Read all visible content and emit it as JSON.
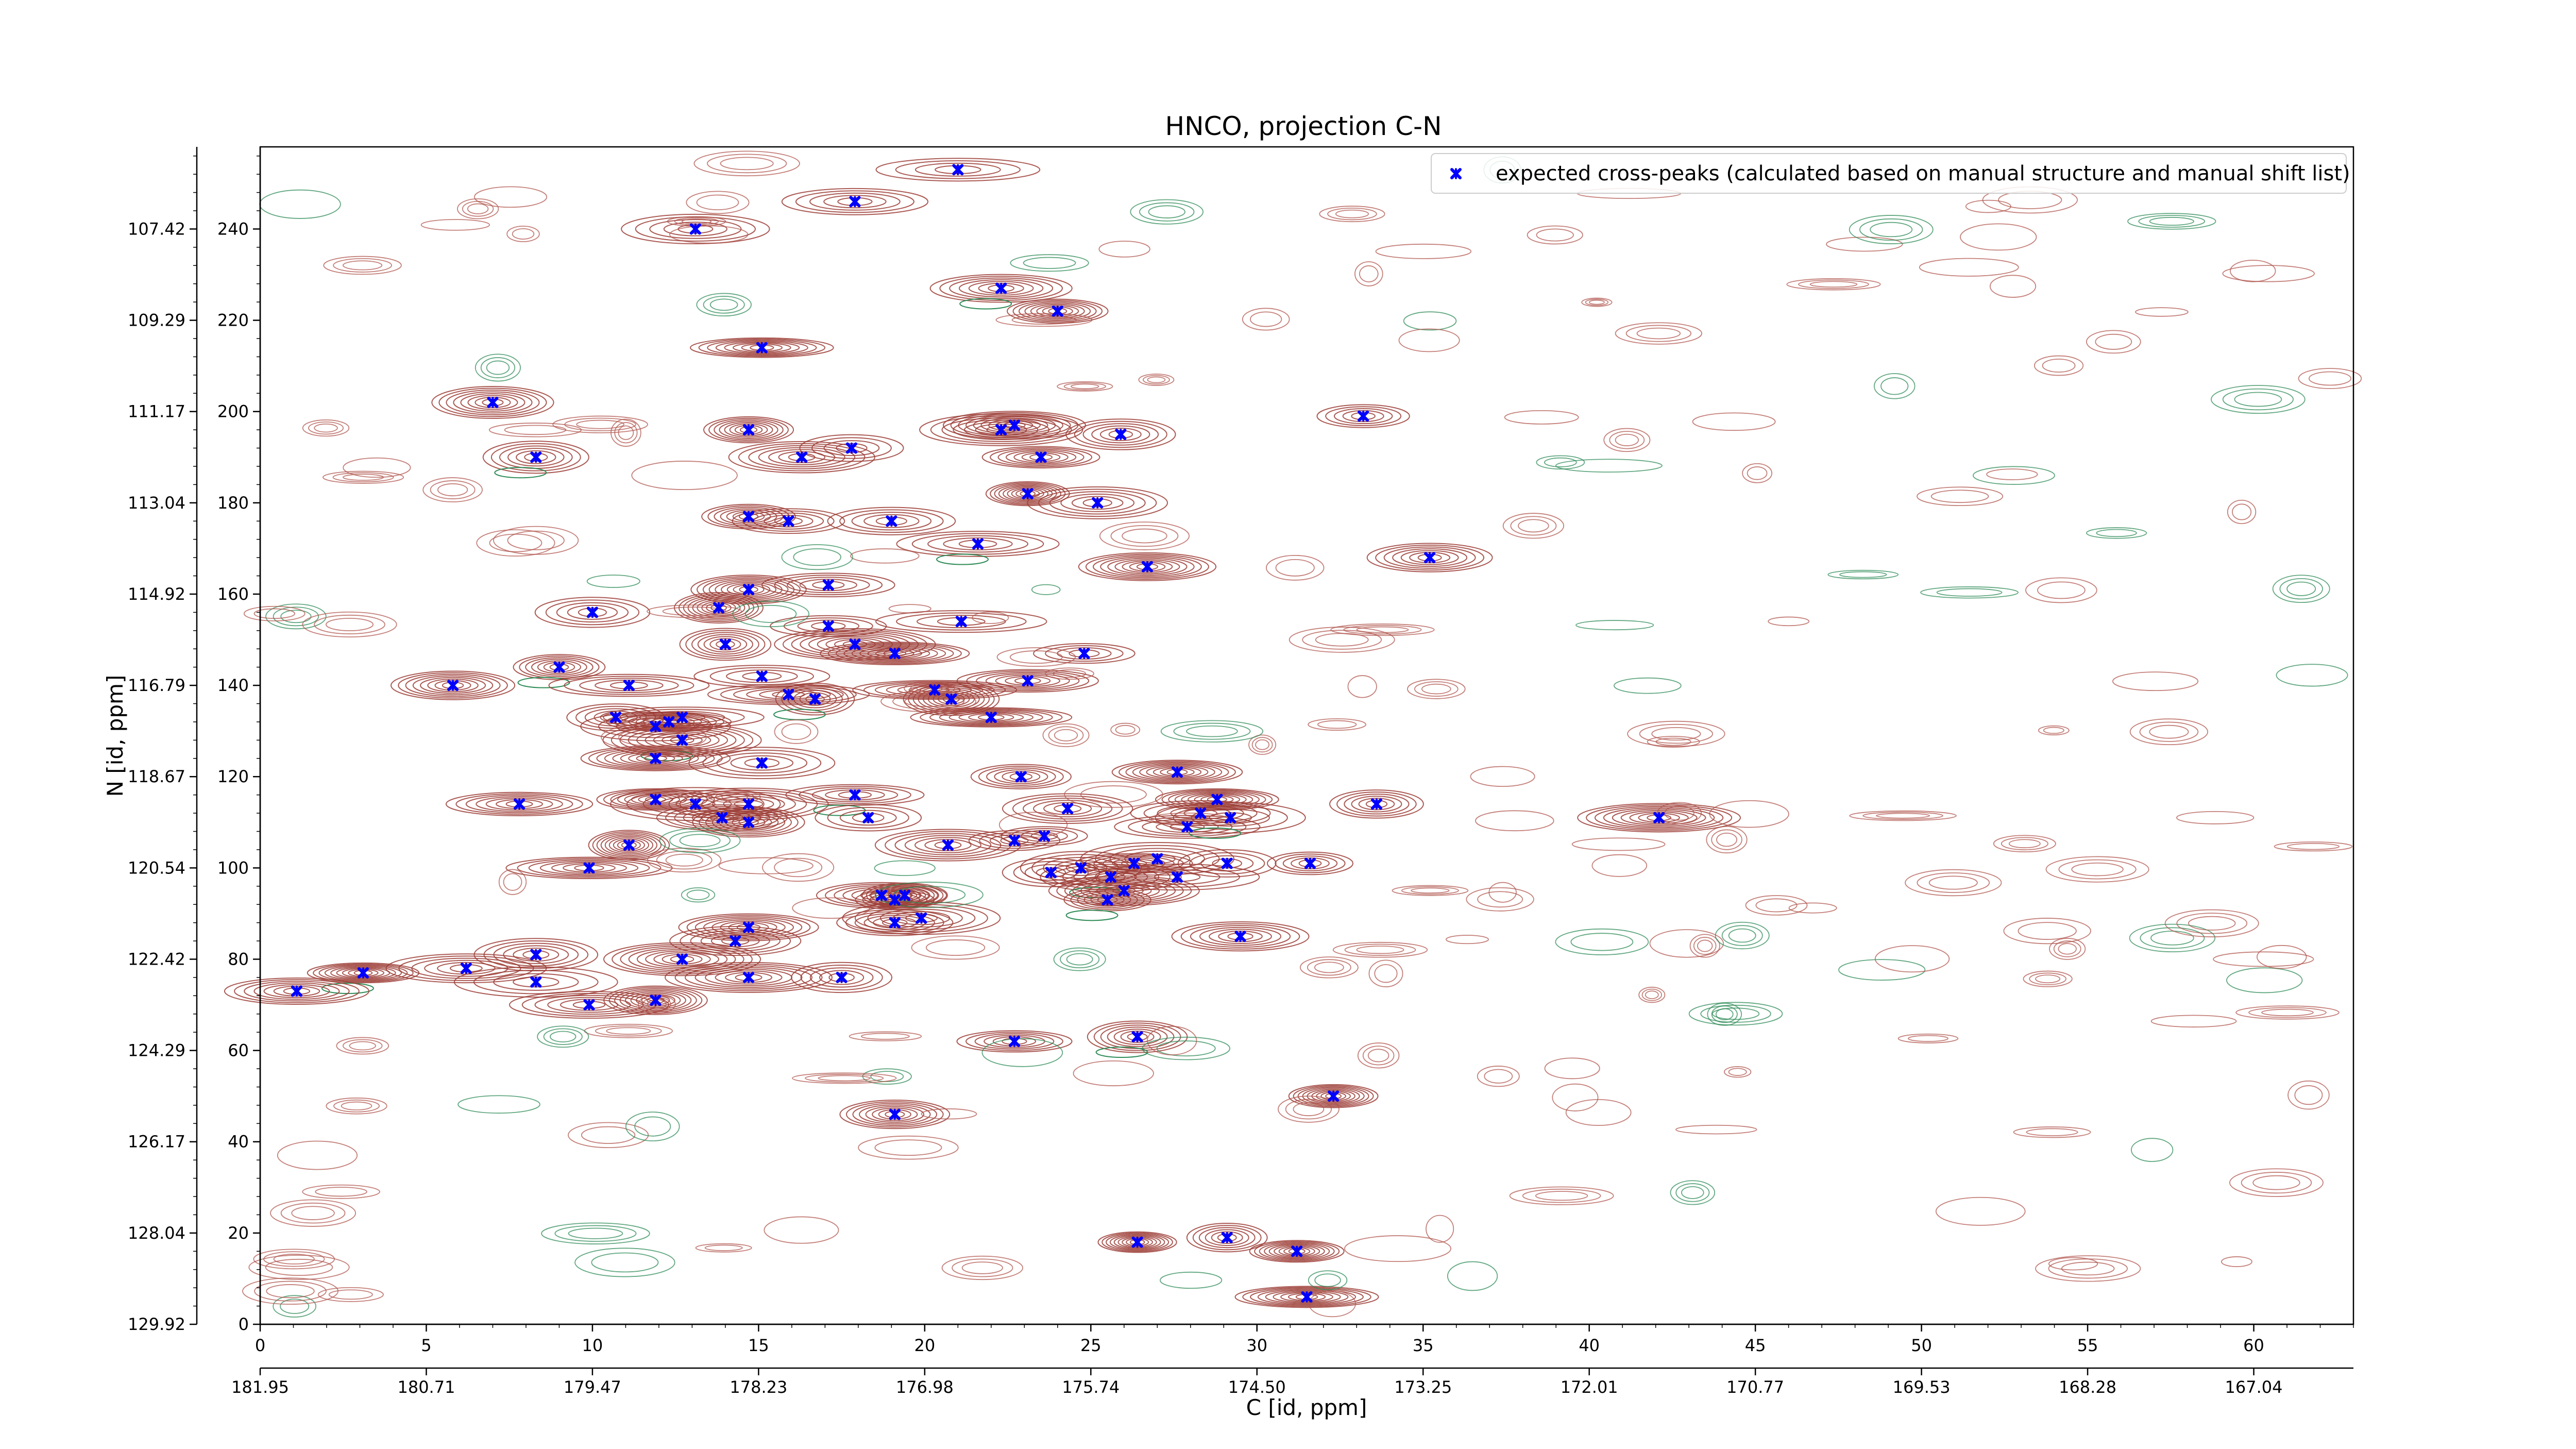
{
  "chart_data": {
    "type": "scatter",
    "title": "HNCO, projection C-N",
    "xlabel": "C [id, ppm]",
    "ylabel": "N [id, ppm]",
    "xlim": [
      0,
      63
    ],
    "ylim": [
      0,
      258
    ],
    "grid": false,
    "legend_position": "top-right",
    "x_ticks": [
      0,
      5,
      10,
      15,
      20,
      25,
      30,
      35,
      40,
      45,
      50,
      55,
      60
    ],
    "x_ticks_ppm": [
      "181.95",
      "180.71",
      "179.47",
      "178.23",
      "176.98",
      "175.74",
      "174.50",
      "173.25",
      "172.01",
      "170.77",
      "169.53",
      "168.28",
      "167.04"
    ],
    "y_ticks": [
      0,
      20,
      40,
      60,
      80,
      100,
      120,
      140,
      160,
      180,
      200,
      220,
      240
    ],
    "y_ticks_ppm": [
      "129.92",
      "128.04",
      "126.17",
      "124.29",
      "122.42",
      "120.54",
      "118.67",
      "116.79",
      "114.92",
      "113.04",
      "111.17",
      "109.29",
      "107.42"
    ],
    "series": [
      {
        "name": "expected cross-peaks (calculated based on manual structure and manual shift list)",
        "color": "#0000ff",
        "marker": "x",
        "points": [
          [
            21.0,
            253
          ],
          [
            17.9,
            246
          ],
          [
            13.1,
            240
          ],
          [
            22.3,
            227
          ],
          [
            24.0,
            222
          ],
          [
            15.1,
            214
          ],
          [
            7.0,
            202
          ],
          [
            14.7,
            196
          ],
          [
            22.7,
            197
          ],
          [
            22.3,
            196
          ],
          [
            25.9,
            195
          ],
          [
            33.2,
            199
          ],
          [
            8.3,
            190
          ],
          [
            16.3,
            190
          ],
          [
            17.8,
            192
          ],
          [
            23.5,
            190
          ],
          [
            23.1,
            182
          ],
          [
            25.2,
            180
          ],
          [
            14.7,
            177
          ],
          [
            15.9,
            176
          ],
          [
            19.0,
            176
          ],
          [
            21.6,
            171
          ],
          [
            26.7,
            166
          ],
          [
            35.2,
            168
          ],
          [
            14.7,
            161
          ],
          [
            17.1,
            162
          ],
          [
            10.0,
            156
          ],
          [
            13.8,
            157
          ],
          [
            17.1,
            153
          ],
          [
            21.1,
            154
          ],
          [
            9.0,
            144
          ],
          [
            14.0,
            149
          ],
          [
            17.9,
            149
          ],
          [
            19.1,
            147
          ],
          [
            24.8,
            147
          ],
          [
            15.1,
            142
          ],
          [
            5.8,
            140
          ],
          [
            11.1,
            140
          ],
          [
            15.9,
            138
          ],
          [
            16.7,
            137
          ],
          [
            20.3,
            139
          ],
          [
            20.8,
            137
          ],
          [
            23.1,
            141
          ],
          [
            10.7,
            133
          ],
          [
            11.9,
            131
          ],
          [
            12.3,
            132
          ],
          [
            12.7,
            133
          ],
          [
            22.0,
            133
          ],
          [
            12.7,
            128
          ],
          [
            11.9,
            124
          ],
          [
            15.1,
            123
          ],
          [
            22.9,
            120
          ],
          [
            27.6,
            121
          ],
          [
            7.8,
            114
          ],
          [
            11.9,
            115
          ],
          [
            13.1,
            114
          ],
          [
            14.7,
            114
          ],
          [
            17.9,
            116
          ],
          [
            24.3,
            113
          ],
          [
            28.8,
            115
          ],
          [
            33.6,
            114
          ],
          [
            13.9,
            111
          ],
          [
            14.7,
            110
          ],
          [
            18.3,
            111
          ],
          [
            27.9,
            109
          ],
          [
            28.3,
            112
          ],
          [
            29.2,
            111
          ],
          [
            42.1,
            111
          ],
          [
            11.1,
            105
          ],
          [
            20.7,
            105
          ],
          [
            22.7,
            106
          ],
          [
            23.6,
            107
          ],
          [
            9.9,
            100
          ],
          [
            23.8,
            99
          ],
          [
            24.7,
            100
          ],
          [
            25.6,
            98
          ],
          [
            26.3,
            101
          ],
          [
            27.0,
            102
          ],
          [
            27.6,
            98
          ],
          [
            29.1,
            101
          ],
          [
            31.6,
            101
          ],
          [
            18.7,
            94
          ],
          [
            19.4,
            94
          ],
          [
            19.1,
            93
          ],
          [
            25.5,
            93
          ],
          [
            26.0,
            95
          ],
          [
            19.9,
            89
          ],
          [
            14.7,
            87
          ],
          [
            19.1,
            88
          ],
          [
            14.3,
            84
          ],
          [
            29.5,
            85
          ],
          [
            12.7,
            80
          ],
          [
            8.3,
            81
          ],
          [
            3.1,
            77
          ],
          [
            6.2,
            78
          ],
          [
            14.7,
            76
          ],
          [
            17.5,
            76
          ],
          [
            8.3,
            75
          ],
          [
            1.1,
            73
          ],
          [
            9.9,
            70
          ],
          [
            11.9,
            71
          ],
          [
            22.7,
            62
          ],
          [
            26.4,
            63
          ],
          [
            19.1,
            46
          ],
          [
            32.3,
            50
          ],
          [
            26.4,
            18
          ],
          [
            29.1,
            19
          ],
          [
            31.2,
            16
          ],
          [
            31.5,
            6
          ]
        ]
      }
    ]
  }
}
